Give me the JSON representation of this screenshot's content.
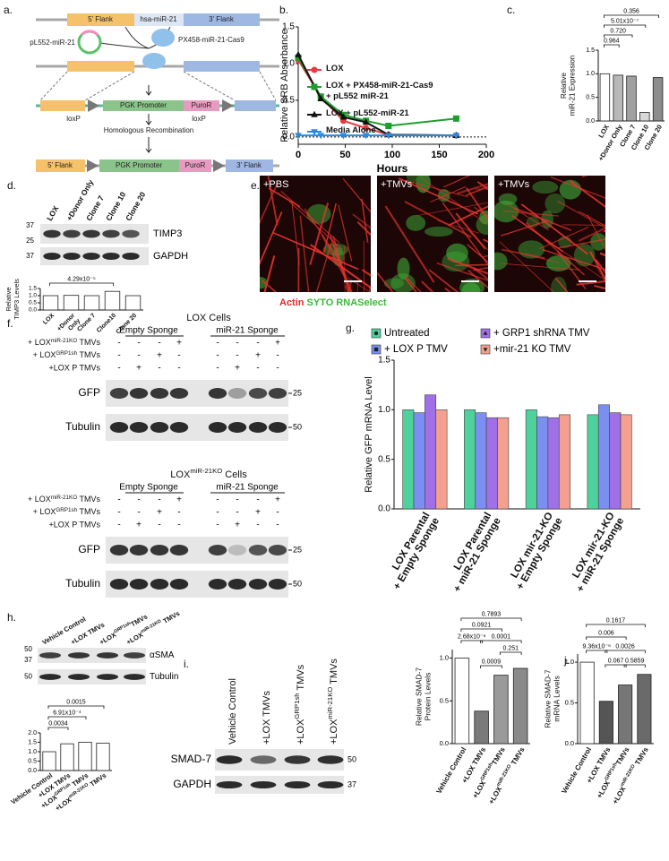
{
  "panel_labels": [
    "a.",
    "b.",
    "c.",
    "d.",
    "e.",
    "f.",
    "g.",
    "h.",
    "i.",
    "j."
  ],
  "diagram": {
    "top": [
      "5' Flank",
      "hsa-miR-21",
      "3' Flank"
    ],
    "plasmid_left": "pL552-miR-21",
    "plasmid_right": "PX458-miR-21-Cas9",
    "cassette": [
      "PGK Promoter",
      "PuroR"
    ],
    "loxp": [
      "loxP",
      "loxP"
    ],
    "step": "Homologous Recombination",
    "result": [
      "5' Flank",
      "PGK Promoter",
      "PuroR",
      "3' Flank"
    ]
  },
  "chart_data": [
    {
      "type": "line",
      "ylabel": "Relative SRB Absorbance",
      "xlabel": "Hours",
      "x": [
        0,
        24,
        48,
        72,
        96,
        168
      ],
      "xlim": [
        0,
        200
      ],
      "xticks": [
        0,
        50,
        100,
        150,
        200
      ],
      "ylim": [
        -0.1,
        1.5
      ],
      "yticks": [
        {
          "value": 0,
          "label": "0.0"
        },
        {
          "value": 0.5,
          "label": "0.5"
        },
        {
          "value": 1,
          "label": "1.0"
        },
        {
          "value": 1.5,
          "label": "1.5"
        }
      ],
      "zero_line": true,
      "legend_loc": "upper right",
      "series": [
        {
          "name": "LOX",
          "color": "#e8393f",
          "marker": "circle",
          "values": [
            1.05,
            0.55,
            0.22,
            0.12,
            0.03,
            0.02
          ]
        },
        {
          "name": "LOX + PX458-miR-21-Cas9 + pL552 miR-21",
          "color": "#1e9e2e",
          "marker": "square",
          "values": [
            1.08,
            0.55,
            0.3,
            0.22,
            0.15,
            0.25
          ]
        },
        {
          "name": "LOX + pL552-miR-21",
          "color": "#111111",
          "marker": "triangle",
          "values": [
            1.12,
            0.52,
            0.27,
            0.2,
            0.03,
            0.02
          ]
        },
        {
          "name": "Media Alone",
          "color": "#2a8be0",
          "marker": "triangle-down",
          "values": [
            0.02,
            0.02,
            0.02,
            0.02,
            0.02,
            0.02
          ]
        }
      ]
    },
    {
      "type": "bar",
      "ylabel": [
        "Relative",
        "miR-21 Expression"
      ],
      "categories": [
        "LOX",
        "+Donor Only",
        "Clone 7",
        "Clone 10",
        "Clone 20"
      ],
      "values": [
        1.0,
        0.97,
        0.95,
        0.18,
        0.92
      ],
      "colors": [
        "#ffffff",
        "#b8b8b8",
        "#a0a0a0",
        "#d8d8d8",
        "#8c8c8c"
      ],
      "ylim": [
        0,
        1.5
      ],
      "yticks": [
        {
          "value": 0,
          "label": "0.0"
        },
        {
          "value": 0.5,
          "label": "0.5"
        },
        {
          "value": 1,
          "label": "1.0"
        },
        {
          "value": 1.5,
          "label": "1.5"
        }
      ],
      "annotations": [
        "0.964",
        "0.720",
        "5.01x10⁻⁷",
        "0.356"
      ]
    },
    {
      "type": "bar",
      "ylabel": [
        "Relative",
        "TIMP3 Levels"
      ],
      "categories": [
        "LOX",
        [
          "+Donor",
          "Only"
        ],
        "Clone 7",
        "Clone10",
        "Clone 20"
      ],
      "values": [
        1.0,
        1.02,
        1.0,
        1.3,
        1.0
      ],
      "colors": [
        "#ffffff",
        "#ffffff",
        "#ffffff",
        "#ffffff",
        "#ffffff"
      ],
      "ylim": [
        0,
        1.5
      ],
      "yticks": [
        {
          "value": 0,
          "label": "0.0"
        },
        {
          "value": 0.5,
          "label": "0.5"
        },
        {
          "value": 1,
          "label": "1.0"
        },
        {
          "value": 1.5,
          "label": "1.5"
        }
      ],
      "annotations": [
        "4.29x10⁻⁵"
      ]
    },
    {
      "type": "grouped_bar",
      "ylabel": "Relative GFP mRNA Level",
      "categories": [
        [
          "LOX Parental",
          "+ Empty Sponge"
        ],
        [
          "LOX Parental",
          "+ miR-21 Sponge"
        ],
        [
          "LOX mir-21-KO",
          "+ Empty Sponge"
        ],
        [
          "LOX mir-21-KO",
          "+ miR-21 Sponge"
        ]
      ],
      "ylim": [
        0,
        1.5
      ],
      "yticks": [
        {
          "value": 0,
          "label": "0.0"
        },
        {
          "value": 0.5,
          "label": "0.5"
        },
        {
          "value": 1,
          "label": "1.0"
        },
        {
          "value": 1.5,
          "label": "1.5"
        }
      ],
      "legend_loc": "top",
      "series": [
        {
          "name": "Untreated",
          "color": "#4fd19c",
          "marker": "circle",
          "values": [
            1.0,
            1.0,
            1.0,
            0.95
          ]
        },
        {
          "name": "+ LOX P TMV",
          "color": "#7b8ff0",
          "marker": "square",
          "values": [
            0.97,
            0.97,
            0.93,
            1.05
          ]
        },
        {
          "name": "+ GRP1 shRNA TMV",
          "color": "#a070e8",
          "marker": "triangle",
          "values": [
            1.15,
            0.92,
            0.92,
            0.97
          ]
        },
        {
          "name": "+mir-21 KO TMV",
          "color": "#f4a08e",
          "marker": "triangle-down",
          "values": [
            1.0,
            0.92,
            0.95,
            0.95
          ]
        }
      ]
    },
    {
      "type": "bar",
      "categories": [
        "Vehicle Control",
        "+LOX TMVs",
        {
          "text": "+LOX",
          "sup": "GRP1sh",
          "after": " TMVs"
        },
        {
          "text": "+LOX",
          "sup": "miR-21KO",
          "after": " TMVs"
        }
      ],
      "values": [
        1.0,
        1.42,
        1.5,
        1.45
      ],
      "colors": [
        "#ffffff",
        "#ffffff",
        "#ffffff",
        "#ffffff"
      ],
      "ylim": [
        0,
        2
      ],
      "yticks": [
        {
          "value": 0,
          "label": "0.0"
        },
        {
          "value": 0.5,
          "label": "0.5"
        },
        {
          "value": 1,
          "label": "1.0"
        },
        {
          "value": 1.5,
          "label": "1.5"
        },
        {
          "value": 2,
          "label": "2.0"
        }
      ],
      "annotations": [
        "0.0034",
        "6.91x10⁻⁴",
        "0.0015"
      ]
    },
    {
      "type": "bar",
      "ylabel": [
        "Relative SMAD-7",
        "Protein Levels"
      ],
      "categories": [
        "Vehicle Control",
        "+LOX TMVs",
        {
          "text": "+LOX",
          "sup": "GRP1sh",
          "after": "TMVs"
        },
        {
          "text": "+LOX",
          "sup": "miR-21KO",
          "after": " TMVs"
        }
      ],
      "values": [
        1.0,
        0.38,
        0.8,
        0.88
      ],
      "colors": [
        "#ffffff",
        "#7a7a7a",
        "#9a9a9a",
        "#8a8a8a"
      ],
      "ylim": [
        0,
        1.1
      ],
      "yticks": [
        {
          "value": 0,
          "label": "0.0"
        },
        {
          "value": 0.5,
          "label": "0.5"
        },
        {
          "value": 1,
          "label": "1.0"
        }
      ],
      "annotations": [
        "0.7893",
        "0.0921",
        "2.68x10⁻⁶",
        "0.0001",
        "0.251",
        "0.0009"
      ]
    },
    {
      "type": "bar",
      "ylabel": [
        "Relative SMAD-7",
        "mRNA Levels"
      ],
      "categories": [
        "Vehicle Control",
        "+LOX TMVs",
        {
          "text": "+LOX",
          "sup": "GRP1sh",
          "after": "TMVs"
        },
        {
          "text": "+LOX",
          "sup": "miR-21KO",
          "after": " TMVs"
        }
      ],
      "values": [
        1.0,
        0.52,
        0.72,
        0.85
      ],
      "colors": [
        "#ffffff",
        "#555555",
        "#777777",
        "#6a6a6a"
      ],
      "ylim": [
        0,
        1.1
      ],
      "yticks": [
        {
          "value": 0,
          "label": "0.0"
        },
        {
          "value": 0.5,
          "label": "0.5"
        },
        {
          "value": 1,
          "label": "1.0"
        }
      ],
      "annotations": [
        "0.1617",
        "0.006",
        "9.36x10⁻⁶",
        "0.0026",
        "0.067",
        "0.5859"
      ]
    }
  ],
  "panel_d": {
    "lanes": [
      "LOX",
      "+Donor Only",
      "Clone 7",
      "Clone 10",
      "Clone 20"
    ],
    "blots": [
      {
        "name": "TIMP3",
        "markers": [
          "37",
          "25"
        ]
      },
      {
        "name": "GAPDH",
        "markers": [
          "37"
        ]
      }
    ]
  },
  "panel_e": {
    "images": [
      "+PBS",
      "+TMVs",
      "+TMVs"
    ],
    "stain": [
      "Actin",
      "SYTO RNASelect"
    ]
  },
  "panel_f": {
    "blocks": [
      {
        "title": "LOX Cells",
        "groups": [
          "Empty Sponge",
          "miR-21 Sponge"
        ],
        "rows": [
          {
            "label": {
              "text": "+ LOX",
              "sup": "miR-21KO",
              "after": " TMVs"
            },
            "signs": [
              "-",
              "-",
              "-",
              "+",
              "-",
              "-",
              "-",
              "+"
            ]
          },
          {
            "label": {
              "text": "+ LOX",
              "sup": "GRP1sh",
              "after": " TMVs"
            },
            "signs": [
              "-",
              "-",
              "+",
              "-",
              "-",
              "-",
              "+",
              "-"
            ]
          },
          {
            "label": "+LOX P TMVs",
            "signs": [
              "-",
              "+",
              "-",
              "-",
              "-",
              "+",
              "-",
              "-"
            ]
          }
        ],
        "blots": [
          {
            "name": "GFP",
            "marker": "25"
          },
          {
            "name": "Tubulin",
            "marker": "50"
          }
        ]
      },
      {
        "title": {
          "text": "LOX",
          "sup": "miR-21KO",
          "after": " Cells"
        },
        "groups": [
          "Empty Sponge",
          "miR-21 Sponge"
        ],
        "rows": [
          {
            "label": {
              "text": "+ LOX",
              "sup": "miR-21KO",
              "after": " TMVs"
            },
            "signs": [
              "-",
              "-",
              "-",
              "+",
              "-",
              "-",
              "-",
              "+"
            ]
          },
          {
            "label": {
              "text": "+ LOX",
              "sup": "GRP1sh",
              "after": " TMVs"
            },
            "signs": [
              "-",
              "-",
              "+",
              "-",
              "-",
              "-",
              "+",
              "-"
            ]
          },
          {
            "label": "+LOX P TMVs",
            "signs": [
              "-",
              "+",
              "-",
              "-",
              "-",
              "+",
              "-",
              "-"
            ]
          }
        ],
        "blots": [
          {
            "name": "GFP",
            "marker": "25"
          },
          {
            "name": "Tubulin",
            "marker": "50"
          }
        ]
      }
    ]
  },
  "panel_h": {
    "lanes": [
      "Vehicle Control",
      "+LOX TMVs",
      {
        "text": "+LOX",
        "sup": "GRP1sh",
        "after": "TMVs"
      },
      {
        "text": "+LOX",
        "sup": "miR-21KO",
        "after": " TMVs"
      }
    ],
    "blots": [
      {
        "name": "αSMA",
        "markers": [
          "50",
          "37"
        ]
      },
      {
        "name": "Tubulin",
        "markers": [
          "50"
        ]
      }
    ]
  },
  "panel_i": {
    "lanes": [
      "Vehicle Control",
      "+LOX TMVs",
      {
        "text": "+LOX",
        "sup": "GRP1sh",
        "after": " TMVs"
      },
      {
        "text": "+LOX",
        "sup": "miR-21KO",
        "after": " TMVs"
      }
    ],
    "blots": [
      {
        "name": "SMAD-7",
        "markers": [
          "50"
        ]
      },
      {
        "name": "GAPDH",
        "markers": [
          "37"
        ]
      }
    ]
  }
}
